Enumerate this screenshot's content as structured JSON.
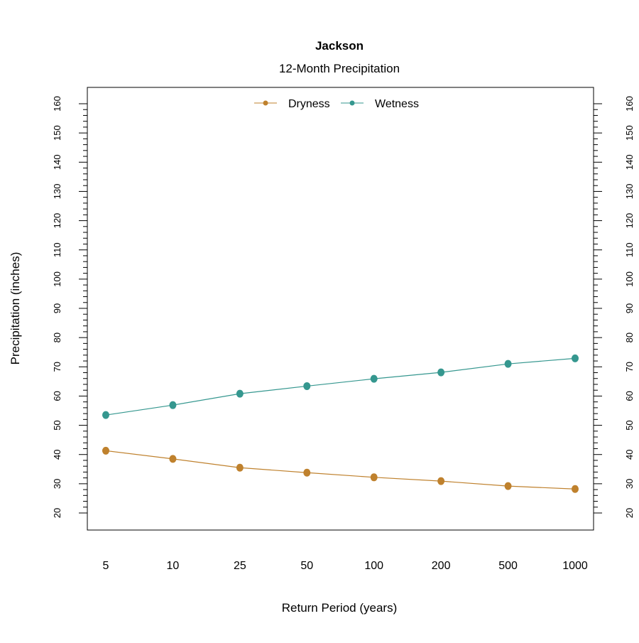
{
  "chart_data": {
    "type": "line",
    "title": "Jackson",
    "subtitle": "12-Month Precipitation",
    "xlabel": "Return Period (years)",
    "ylabel": "Precipitation (inches)",
    "categories": [
      "5",
      "10",
      "25",
      "50",
      "100",
      "200",
      "500",
      "1000"
    ],
    "ylim": [
      15,
      165
    ],
    "yticks": [
      20,
      30,
      40,
      50,
      60,
      70,
      80,
      90,
      100,
      110,
      120,
      130,
      140,
      150,
      160
    ],
    "y_minor_step": 2,
    "grid": false,
    "legend_position": "top",
    "series": [
      {
        "name": "Dryness",
        "color": "#BF812D",
        "values": [
          41.3,
          38.5,
          35.5,
          33.8,
          32.2,
          30.9,
          29.2,
          28.2
        ]
      },
      {
        "name": "Wetness",
        "color": "#35978F",
        "values": [
          53.5,
          56.9,
          60.8,
          63.4,
          65.9,
          68.1,
          71.0,
          72.9
        ]
      }
    ]
  }
}
